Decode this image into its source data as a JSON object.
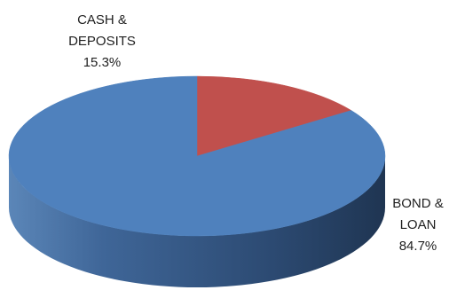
{
  "chart_data": {
    "type": "pie",
    "style": "3d",
    "title": "",
    "legend": "none",
    "slices": [
      {
        "label_lines": [
          "CASH &",
          "DEPOSITS"
        ],
        "value_label": "15.3%",
        "value": 15.3,
        "color": "#c0504d",
        "side_color": "#9b3a37"
      },
      {
        "label_lines": [
          "BOND &",
          "LOAN"
        ],
        "value_label": "84.7%",
        "value": 84.7,
        "color": "#4f81bd",
        "side_color": "#3a6496"
      }
    ]
  }
}
